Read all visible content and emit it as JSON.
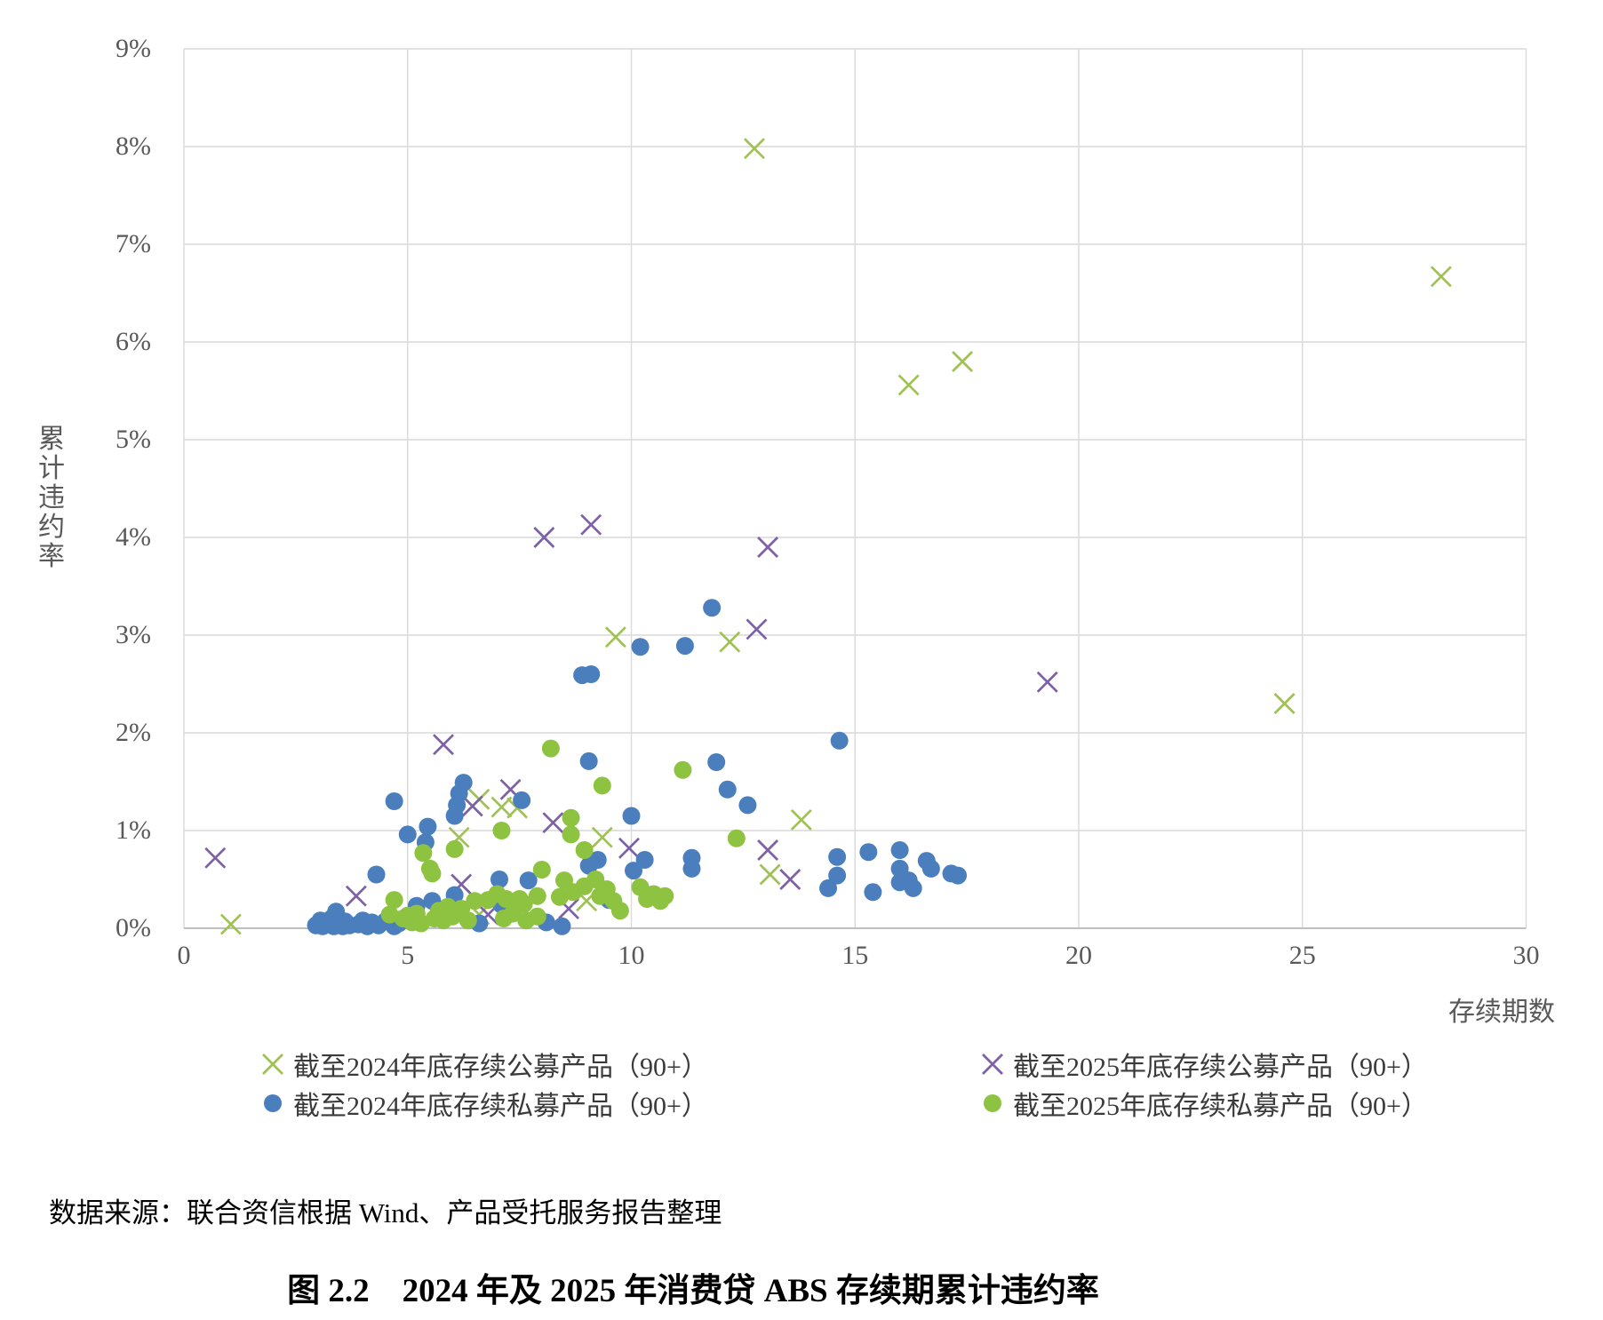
{
  "page": {
    "source_note": "数据来源：联合资信根据 Wind、产品受托服务报告整理",
    "caption": "图 2.2　2024 年及 2025 年消费贷 ABS 存续期累计违约率"
  },
  "chart_data": {
    "type": "scatter",
    "title": "",
    "x_axis": {
      "title": "存续期数",
      "min": 0,
      "max": 30,
      "tick_values": [
        0,
        5,
        10,
        15,
        20,
        25,
        30
      ],
      "tick_labels": [
        "0",
        "5",
        "10",
        "15",
        "20",
        "25",
        "30"
      ]
    },
    "y_axis": {
      "title": "累计违约率",
      "min": 0,
      "max": 9,
      "unit": "%",
      "tick_values": [
        0,
        1,
        2,
        3,
        4,
        5,
        6,
        7,
        8,
        9
      ],
      "tick_labels": [
        "0%",
        "1%",
        "2%",
        "3%",
        "4%",
        "5%",
        "6%",
        "7%",
        "8%",
        "9%"
      ]
    },
    "grid": true,
    "grid_color": "#d9d9d9",
    "axis_line_color": "#bfbfbf",
    "legend_position": "bottom-two-columns",
    "series": [
      {
        "name": "截至2024年底存续公募产品（90+）",
        "marker": "x",
        "color": "#9fc253",
        "points": [
          [
            1.05,
            0.04
          ],
          [
            6.15,
            0.93
          ],
          [
            6.6,
            1.32
          ],
          [
            6.6,
            0.14
          ],
          [
            7.1,
            1.24
          ],
          [
            7.45,
            1.23
          ],
          [
            9.0,
            0.28
          ],
          [
            9.35,
            0.93
          ],
          [
            9.65,
            2.98
          ],
          [
            12.2,
            2.93
          ],
          [
            12.75,
            7.98
          ],
          [
            13.1,
            0.55
          ],
          [
            13.8,
            1.11
          ],
          [
            16.2,
            5.56
          ],
          [
            17.4,
            5.8
          ],
          [
            24.6,
            2.3
          ],
          [
            28.1,
            6.67
          ]
        ]
      },
      {
        "name": "截至2025年底存续公募产品（90+）",
        "marker": "x",
        "color": "#7d60a5",
        "points": [
          [
            0.7,
            0.72
          ],
          [
            3.85,
            0.33
          ],
          [
            5.8,
            1.88
          ],
          [
            6.2,
            0.45
          ],
          [
            6.45,
            1.25
          ],
          [
            6.8,
            0.14
          ],
          [
            7.3,
            1.42
          ],
          [
            8.05,
            4.0
          ],
          [
            8.25,
            1.08
          ],
          [
            8.6,
            0.2
          ],
          [
            9.1,
            4.13
          ],
          [
            9.95,
            0.82
          ],
          [
            12.8,
            3.06
          ],
          [
            13.05,
            3.9
          ],
          [
            13.05,
            0.8
          ],
          [
            13.55,
            0.5
          ],
          [
            19.3,
            2.52
          ]
        ]
      },
      {
        "name": "截至2024年底存续私募产品（90+）",
        "marker": "circle",
        "color": "#4a7ebd",
        "points": [
          [
            2.95,
            0.03
          ],
          [
            3.05,
            0.08
          ],
          [
            3.1,
            0.02
          ],
          [
            3.2,
            0.05
          ],
          [
            3.3,
            0.1
          ],
          [
            3.35,
            0.02
          ],
          [
            3.4,
            0.17
          ],
          [
            3.45,
            0.05
          ],
          [
            3.55,
            0.02
          ],
          [
            3.6,
            0.07
          ],
          [
            3.7,
            0.03
          ],
          [
            3.9,
            0.04
          ],
          [
            4.0,
            0.08
          ],
          [
            4.1,
            0.02
          ],
          [
            4.2,
            0.06
          ],
          [
            4.3,
            0.55
          ],
          [
            4.35,
            0.03
          ],
          [
            4.5,
            0.07
          ],
          [
            4.7,
            0.02
          ],
          [
            4.8,
            0.05
          ],
          [
            4.7,
            1.3
          ],
          [
            5.0,
            0.96
          ],
          [
            5.2,
            0.23
          ],
          [
            5.4,
            0.88
          ],
          [
            5.45,
            1.04
          ],
          [
            5.55,
            0.28
          ],
          [
            6.05,
            1.15
          ],
          [
            6.05,
            0.34
          ],
          [
            6.1,
            1.26
          ],
          [
            6.15,
            1.38
          ],
          [
            6.25,
            1.49
          ],
          [
            6.6,
            0.05
          ],
          [
            7.05,
            0.5
          ],
          [
            7.1,
            0.24
          ],
          [
            7.35,
            0.17
          ],
          [
            7.55,
            1.31
          ],
          [
            7.7,
            0.49
          ],
          [
            8.1,
            0.06
          ],
          [
            8.45,
            0.02
          ],
          [
            8.9,
            2.59
          ],
          [
            9.05,
            1.71
          ],
          [
            9.05,
            0.64
          ],
          [
            9.1,
            2.6
          ],
          [
            9.25,
            0.7
          ],
          [
            9.5,
            0.29
          ],
          [
            10.0,
            1.15
          ],
          [
            10.05,
            0.59
          ],
          [
            10.2,
            2.88
          ],
          [
            10.3,
            0.7
          ],
          [
            11.2,
            2.89
          ],
          [
            11.35,
            0.72
          ],
          [
            11.35,
            0.61
          ],
          [
            11.8,
            3.28
          ],
          [
            11.9,
            1.7
          ],
          [
            12.15,
            1.42
          ],
          [
            12.6,
            1.26
          ],
          [
            14.4,
            0.41
          ],
          [
            14.6,
            0.73
          ],
          [
            14.6,
            0.54
          ],
          [
            14.65,
            1.92
          ],
          [
            15.3,
            0.78
          ],
          [
            15.4,
            0.37
          ],
          [
            16.0,
            0.8
          ],
          [
            16.0,
            0.61
          ],
          [
            16.0,
            0.47
          ],
          [
            16.2,
            0.49
          ],
          [
            16.3,
            0.41
          ],
          [
            16.6,
            0.69
          ],
          [
            16.7,
            0.61
          ],
          [
            17.15,
            0.56
          ],
          [
            17.3,
            0.54
          ]
        ]
      },
      {
        "name": "截至2025年底存续私募产品（90+）",
        "marker": "circle",
        "color": "#8ec341",
        "points": [
          [
            4.6,
            0.14
          ],
          [
            4.7,
            0.29
          ],
          [
            4.9,
            0.1
          ],
          [
            5.0,
            0.13
          ],
          [
            5.1,
            0.06
          ],
          [
            5.2,
            0.15
          ],
          [
            5.3,
            0.05
          ],
          [
            5.35,
            0.77
          ],
          [
            5.5,
            0.61
          ],
          [
            5.55,
            0.56
          ],
          [
            5.6,
            0.1
          ],
          [
            5.7,
            0.18
          ],
          [
            5.8,
            0.08
          ],
          [
            5.9,
            0.22
          ],
          [
            6.0,
            0.12
          ],
          [
            6.05,
            0.81
          ],
          [
            6.2,
            0.2
          ],
          [
            6.35,
            0.08
          ],
          [
            6.5,
            0.28
          ],
          [
            6.8,
            0.29
          ],
          [
            7.0,
            0.35
          ],
          [
            7.1,
            1.0
          ],
          [
            7.15,
            0.1
          ],
          [
            7.2,
            0.3
          ],
          [
            7.35,
            0.15
          ],
          [
            7.5,
            0.3
          ],
          [
            7.6,
            0.25
          ],
          [
            7.65,
            0.08
          ],
          [
            7.9,
            0.33
          ],
          [
            7.9,
            0.12
          ],
          [
            8.0,
            0.6
          ],
          [
            8.2,
            1.84
          ],
          [
            8.4,
            0.32
          ],
          [
            8.5,
            0.49
          ],
          [
            8.65,
            1.13
          ],
          [
            8.65,
            0.96
          ],
          [
            8.7,
            0.37
          ],
          [
            8.95,
            0.8
          ],
          [
            8.95,
            0.43
          ],
          [
            9.2,
            0.5
          ],
          [
            9.3,
            0.33
          ],
          [
            9.35,
            1.46
          ],
          [
            9.45,
            0.4
          ],
          [
            9.6,
            0.28
          ],
          [
            9.75,
            0.18
          ],
          [
            10.2,
            0.42
          ],
          [
            10.35,
            0.3
          ],
          [
            10.5,
            0.35
          ],
          [
            10.65,
            0.28
          ],
          [
            10.75,
            0.33
          ],
          [
            11.15,
            1.62
          ],
          [
            12.35,
            0.92
          ]
        ]
      }
    ]
  }
}
